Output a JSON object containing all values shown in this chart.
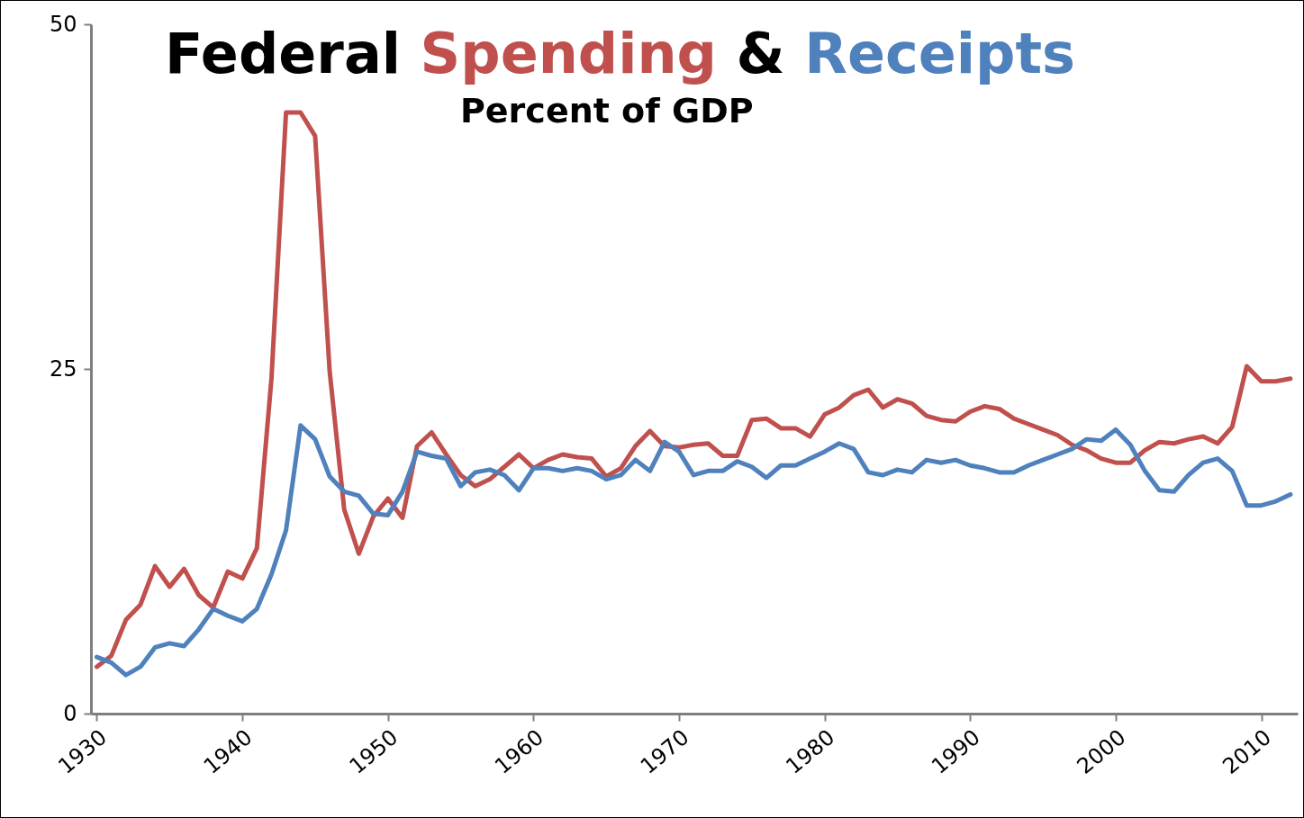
{
  "chart_data": {
    "type": "line",
    "title": "Federal Spending & Receipts",
    "subtitle": "Percent of GDP",
    "x": [
      1930,
      1931,
      1932,
      1933,
      1934,
      1935,
      1936,
      1937,
      1938,
      1939,
      1940,
      1941,
      1942,
      1943,
      1944,
      1945,
      1946,
      1947,
      1948,
      1949,
      1950,
      1951,
      1952,
      1953,
      1954,
      1955,
      1956,
      1957,
      1958,
      1959,
      1960,
      1961,
      1962,
      1963,
      1964,
      1965,
      1966,
      1967,
      1968,
      1969,
      1970,
      1971,
      1972,
      1973,
      1974,
      1975,
      1976,
      1977,
      1978,
      1979,
      1980,
      1981,
      1982,
      1983,
      1984,
      1985,
      1986,
      1987,
      1988,
      1989,
      1990,
      1991,
      1992,
      1993,
      1994,
      1995,
      1996,
      1997,
      1998,
      1999,
      2000,
      2001,
      2002,
      2003,
      2004,
      2005,
      2006,
      2007,
      2008,
      2009,
      2010,
      2011,
      2012
    ],
    "series": [
      {
        "color": "#c0504d",
        "values": [
          3.4,
          4.2,
          6.8,
          7.9,
          10.7,
          9.2,
          10.5,
          8.6,
          7.7,
          10.3,
          9.8,
          12.0,
          24.3,
          43.6,
          43.6,
          41.9,
          24.8,
          14.8,
          11.6,
          14.3,
          15.6,
          14.2,
          19.4,
          20.4,
          18.8,
          17.3,
          16.5,
          17.0,
          17.9,
          18.8,
          17.8,
          18.4,
          18.8,
          18.6,
          18.5,
          17.2,
          17.8,
          19.4,
          20.5,
          19.4,
          19.3,
          19.5,
          19.6,
          18.7,
          18.7,
          21.3,
          21.4,
          20.7,
          20.7,
          20.1,
          21.7,
          22.2,
          23.1,
          23.5,
          22.2,
          22.8,
          22.5,
          21.6,
          21.3,
          21.2,
          21.9,
          22.3,
          22.1,
          21.4,
          21.0,
          20.6,
          20.2,
          19.5,
          19.1,
          18.5,
          18.2,
          18.2,
          19.1,
          19.7,
          19.6,
          19.9,
          20.1,
          19.6,
          20.8,
          25.2,
          24.1,
          24.1,
          24.3
        ]
      },
      {
        "color": "#4f81bd",
        "values": [
          4.1,
          3.7,
          2.8,
          3.4,
          4.8,
          5.1,
          4.9,
          6.1,
          7.6,
          7.1,
          6.7,
          7.6,
          10.1,
          13.3,
          20.9,
          19.9,
          17.2,
          16.1,
          15.8,
          14.5,
          14.4,
          16.1,
          19.0,
          18.7,
          18.5,
          16.5,
          17.5,
          17.7,
          17.3,
          16.2,
          17.8,
          17.8,
          17.6,
          17.8,
          17.6,
          17.0,
          17.3,
          18.4,
          17.6,
          19.7,
          19.0,
          17.3,
          17.6,
          17.6,
          18.3,
          17.9,
          17.1,
          18.0,
          18.0,
          18.5,
          19.0,
          19.6,
          19.2,
          17.5,
          17.3,
          17.7,
          17.5,
          18.4,
          18.2,
          18.4,
          18.0,
          17.8,
          17.5,
          17.5,
          18.0,
          18.4,
          18.8,
          19.2,
          19.9,
          19.8,
          20.6,
          19.5,
          17.6,
          16.2,
          16.1,
          17.3,
          18.2,
          18.5,
          17.6,
          15.1,
          15.1,
          15.4,
          15.9
        ]
      }
    ],
    "xlim": [
      1929.6,
      2012.5
    ],
    "xticks": [
      1930,
      1940,
      1950,
      1960,
      1970,
      1980,
      1990,
      2000,
      2010
    ],
    "ylim": [
      0,
      50
    ],
    "yticks": [
      0,
      25,
      50
    ],
    "grid": false
  }
}
